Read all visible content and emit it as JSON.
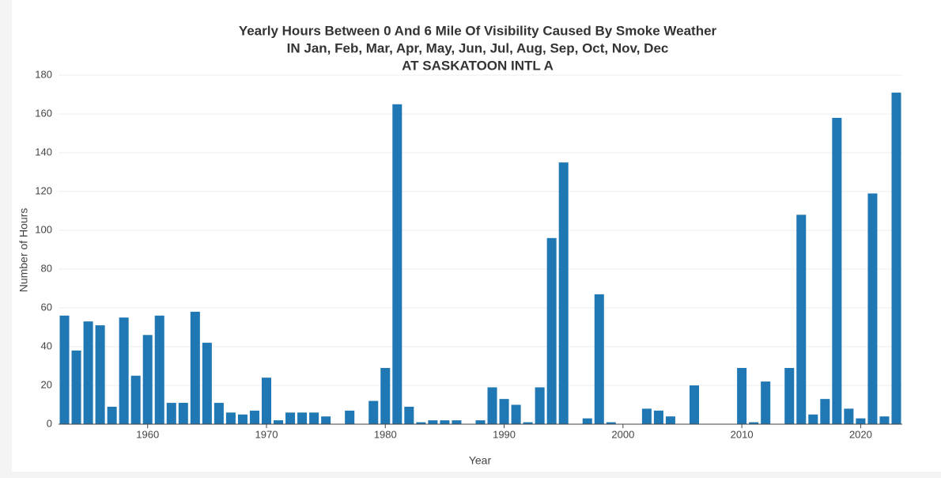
{
  "chart_data": {
    "type": "bar",
    "title": [
      "Yearly Hours Between 0 And 6 Mile Of Visibility Caused By Smoke Weather",
      "IN Jan, Feb, Mar, Apr, May, Jun, Jul, Aug, Sep, Oct, Nov, Dec",
      "AT SASKATOON INTL A"
    ],
    "x_label": "Year",
    "y_label": "Number of Hours",
    "color": "#1f77b4",
    "x": [
      1953,
      1954,
      1955,
      1956,
      1957,
      1958,
      1959,
      1960,
      1961,
      1962,
      1963,
      1964,
      1965,
      1966,
      1967,
      1968,
      1969,
      1970,
      1971,
      1972,
      1973,
      1974,
      1975,
      1977,
      1979,
      1980,
      1981,
      1982,
      1983,
      1984,
      1985,
      1986,
      1988,
      1989,
      1990,
      1991,
      1992,
      1993,
      1994,
      1995,
      1997,
      1998,
      1999,
      2002,
      2003,
      2004,
      2006,
      2010,
      2011,
      2012,
      2014,
      2015,
      2016,
      2017,
      2018,
      2019,
      2020,
      2021,
      2022,
      2023
    ],
    "values": [
      56,
      38,
      53,
      51,
      9,
      55,
      25,
      46,
      56,
      11,
      11,
      58,
      42,
      11,
      6,
      5,
      7,
      24,
      2,
      6,
      6,
      6,
      4,
      7,
      12,
      29,
      165,
      9,
      1,
      2,
      2,
      2,
      2,
      19,
      13,
      10,
      1,
      19,
      96,
      135,
      3,
      67,
      1,
      8,
      7,
      4,
      20,
      29,
      1,
      22,
      29,
      108,
      5,
      13,
      158,
      8,
      3,
      119,
      4,
      171
    ],
    "xlim": [
      1952.5,
      2023.5
    ],
    "xticks": [
      1960,
      1970,
      1980,
      1990,
      2000,
      2010,
      2020
    ],
    "ylim": [
      0,
      180
    ],
    "yticks": [
      0,
      20,
      40,
      60,
      80,
      100,
      120,
      140,
      160,
      180
    ],
    "grid": true
  }
}
